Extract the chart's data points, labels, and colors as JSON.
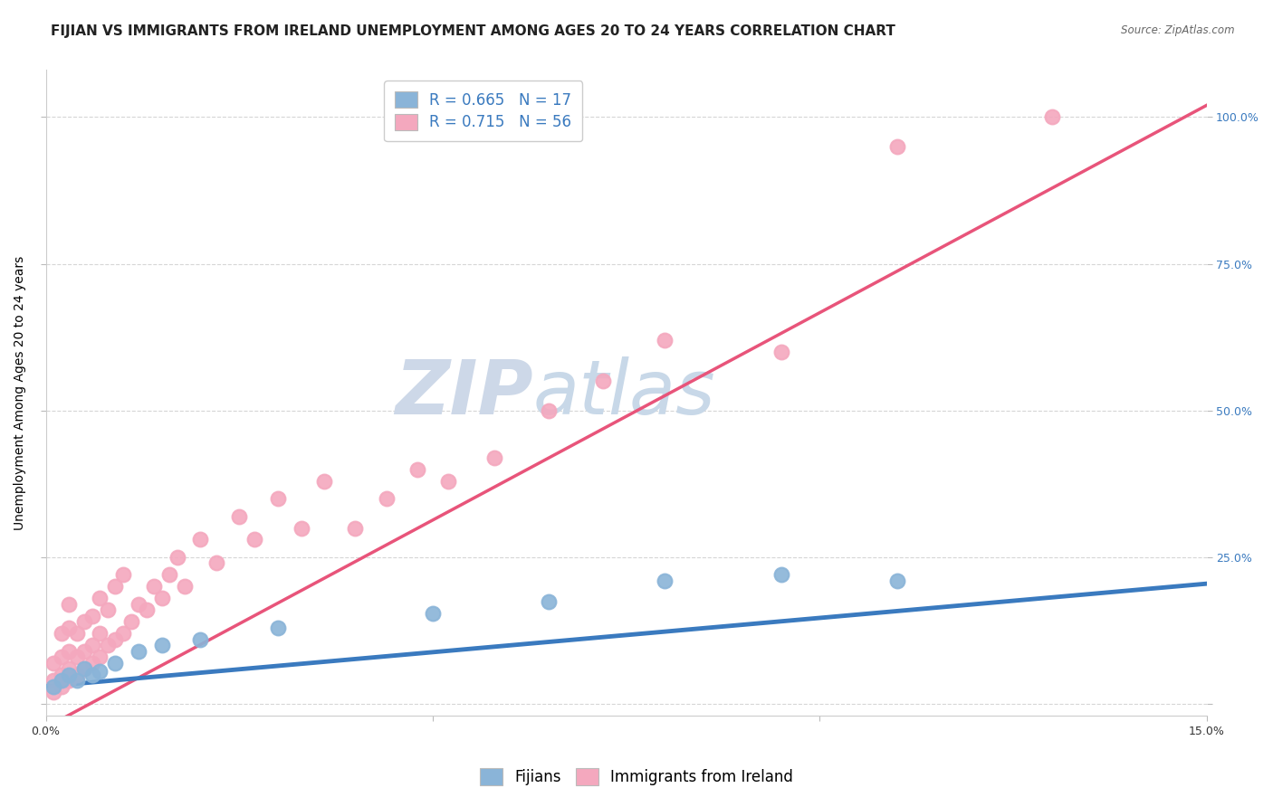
{
  "title": "FIJIAN VS IMMIGRANTS FROM IRELAND UNEMPLOYMENT AMONG AGES 20 TO 24 YEARS CORRELATION CHART",
  "source_text": "Source: ZipAtlas.com",
  "ylabel": "Unemployment Among Ages 20 to 24 years",
  "xlim": [
    0.0,
    0.15
  ],
  "ylim": [
    -0.02,
    1.08
  ],
  "yticks_right": [
    0.0,
    0.25,
    0.5,
    0.75,
    1.0
  ],
  "yticklabels_right": [
    "",
    "25.0%",
    "50.0%",
    "75.0%",
    "100.0%"
  ],
  "fijians_x": [
    0.001,
    0.002,
    0.003,
    0.004,
    0.005,
    0.006,
    0.007,
    0.009,
    0.012,
    0.015,
    0.02,
    0.03,
    0.05,
    0.065,
    0.08,
    0.095,
    0.11
  ],
  "fijians_y": [
    0.03,
    0.04,
    0.05,
    0.04,
    0.06,
    0.05,
    0.055,
    0.07,
    0.09,
    0.1,
    0.11,
    0.13,
    0.155,
    0.175,
    0.21,
    0.22,
    0.21
  ],
  "ireland_x": [
    0.001,
    0.001,
    0.001,
    0.002,
    0.002,
    0.002,
    0.002,
    0.003,
    0.003,
    0.003,
    0.003,
    0.003,
    0.004,
    0.004,
    0.004,
    0.005,
    0.005,
    0.005,
    0.006,
    0.006,
    0.006,
    0.007,
    0.007,
    0.007,
    0.008,
    0.008,
    0.009,
    0.009,
    0.01,
    0.01,
    0.011,
    0.012,
    0.013,
    0.014,
    0.015,
    0.016,
    0.017,
    0.018,
    0.02,
    0.022,
    0.025,
    0.027,
    0.03,
    0.033,
    0.036,
    0.04,
    0.044,
    0.048,
    0.052,
    0.058,
    0.065,
    0.072,
    0.08,
    0.095,
    0.11,
    0.13
  ],
  "ireland_y": [
    0.02,
    0.04,
    0.07,
    0.03,
    0.05,
    0.08,
    0.12,
    0.04,
    0.06,
    0.09,
    0.13,
    0.17,
    0.05,
    0.08,
    0.12,
    0.06,
    0.09,
    0.14,
    0.07,
    0.1,
    0.15,
    0.08,
    0.12,
    0.18,
    0.1,
    0.16,
    0.11,
    0.2,
    0.12,
    0.22,
    0.14,
    0.17,
    0.16,
    0.2,
    0.18,
    0.22,
    0.25,
    0.2,
    0.28,
    0.24,
    0.32,
    0.28,
    0.35,
    0.3,
    0.38,
    0.3,
    0.35,
    0.4,
    0.38,
    0.42,
    0.5,
    0.55,
    0.62,
    0.6,
    0.95,
    1.0
  ],
  "ireland_line_x0": 0.0,
  "ireland_line_y0": -0.04,
  "ireland_line_x1": 0.15,
  "ireland_line_y1": 1.02,
  "fijians_line_x0": 0.0,
  "fijians_line_y0": 0.03,
  "fijians_line_x1": 0.15,
  "fijians_line_y1": 0.205,
  "fijians_R": 0.665,
  "fijians_N": 17,
  "ireland_R": 0.715,
  "ireland_N": 56,
  "fijians_color": "#8ab4d8",
  "ireland_color": "#f4a8be",
  "fijians_line_color": "#3a7abf",
  "ireland_line_color": "#e8547a",
  "legend_label_color": "#3a7abf",
  "watermark_zip_color": "#cdd8e8",
  "watermark_atlas_color": "#c8d8e8",
  "background_color": "#ffffff",
  "grid_color": "#cccccc",
  "title_fontsize": 11,
  "axis_label_fontsize": 10,
  "tick_fontsize": 9,
  "legend_fontsize": 12
}
